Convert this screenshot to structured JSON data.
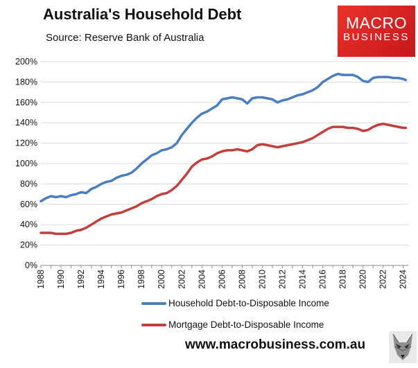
{
  "header": {
    "title": "Australia's Household Debt",
    "subtitle": "Source: Reserve Bank of Australia"
  },
  "logo": {
    "line1": "MACRO",
    "line2": "BUSINESS",
    "color": "#d9241f"
  },
  "footer": {
    "website": "www.macrobusiness.com.au",
    "icon": "wolf-icon"
  },
  "chart_data": {
    "type": "line",
    "title": "Australia's Household Debt",
    "xlabel": "",
    "ylabel": "",
    "xlim": [
      1988,
      2024.5
    ],
    "ylim": [
      0,
      200
    ],
    "y_tick_labels": [
      "0%",
      "20%",
      "40%",
      "60%",
      "80%",
      "100%",
      "120%",
      "140%",
      "160%",
      "180%",
      "200%"
    ],
    "x_tick_labels": [
      "1988",
      "1990",
      "1992",
      "1994",
      "1996",
      "1998",
      "2000",
      "2002",
      "2004",
      "2006",
      "2008",
      "2010",
      "2012",
      "2014",
      "2016",
      "2018",
      "2020",
      "2022",
      "2024"
    ],
    "grid": "horizontal",
    "legend_position": "bottom",
    "series": [
      {
        "name": "Household Debt-to-Disposable Income",
        "color": "#4a7ebf",
        "x": [
          1988,
          1988.5,
          1989,
          1989.5,
          1990,
          1990.5,
          1991,
          1991.5,
          1992,
          1992.5,
          1993,
          1993.5,
          1994,
          1994.5,
          1995,
          1995.5,
          1996,
          1996.5,
          1997,
          1997.5,
          1998,
          1998.5,
          1999,
          1999.5,
          2000,
          2000.5,
          2001,
          2001.5,
          2002,
          2002.5,
          2003,
          2003.5,
          2004,
          2004.5,
          2005,
          2005.5,
          2006,
          2006.5,
          2007,
          2007.5,
          2008,
          2008.5,
          2009,
          2009.5,
          2010,
          2010.5,
          2011,
          2011.5,
          2012,
          2012.5,
          2013,
          2013.5,
          2014,
          2014.5,
          2015,
          2015.5,
          2016,
          2016.5,
          2017,
          2017.5,
          2018,
          2018.5,
          2019,
          2019.5,
          2020,
          2020.5,
          2021,
          2021.5,
          2022,
          2022.5,
          2023,
          2023.5,
          2024,
          2024.25
        ],
        "y": [
          63,
          66,
          68,
          67,
          68,
          67,
          69,
          70,
          72,
          71,
          75,
          77,
          80,
          82,
          83,
          86,
          88,
          89,
          91,
          95,
          100,
          104,
          108,
          110,
          113,
          114,
          116,
          120,
          128,
          134,
          140,
          145,
          149,
          151,
          154,
          157,
          163,
          164,
          165,
          164,
          163,
          159,
          164,
          165,
          165,
          164,
          163,
          160,
          162,
          163,
          165,
          167,
          168,
          170,
          172,
          175,
          180,
          183,
          186,
          188,
          187,
          187,
          187,
          185,
          181,
          180,
          184,
          185,
          185,
          185,
          184,
          184,
          183,
          182
        ]
      },
      {
        "name": "Mortgage Debt-to-Disposable Income",
        "color": "#c0403d",
        "x": [
          1988,
          1988.5,
          1989,
          1989.5,
          1990,
          1990.5,
          1991,
          1991.5,
          1992,
          1992.5,
          1993,
          1993.5,
          1994,
          1994.5,
          1995,
          1995.5,
          1996,
          1996.5,
          1997,
          1997.5,
          1998,
          1998.5,
          1999,
          1999.5,
          2000,
          2000.5,
          2001,
          2001.5,
          2002,
          2002.5,
          2003,
          2003.5,
          2004,
          2004.5,
          2005,
          2005.5,
          2006,
          2006.5,
          2007,
          2007.5,
          2008,
          2008.5,
          2009,
          2009.5,
          2010,
          2010.5,
          2011,
          2011.5,
          2012,
          2012.5,
          2013,
          2013.5,
          2014,
          2014.5,
          2015,
          2015.5,
          2016,
          2016.5,
          2017,
          2017.5,
          2018,
          2018.5,
          2019,
          2019.5,
          2020,
          2020.5,
          2021,
          2021.5,
          2022,
          2022.5,
          2023,
          2023.5,
          2024,
          2024.25
        ],
        "y": [
          32,
          32,
          32,
          31,
          31,
          31,
          32,
          34,
          35,
          37,
          40,
          43,
          46,
          48,
          50,
          51,
          52,
          54,
          56,
          58,
          61,
          63,
          65,
          68,
          70,
          71,
          74,
          78,
          84,
          90,
          97,
          101,
          104,
          105,
          107,
          110,
          112,
          113,
          113,
          114,
          113,
          112,
          114,
          118,
          119,
          118,
          117,
          116,
          117,
          118,
          119,
          120,
          121,
          123,
          125,
          128,
          131,
          134,
          136,
          136,
          136,
          135,
          135,
          134,
          132,
          133,
          136,
          138,
          139,
          138,
          137,
          136,
          135,
          135
        ]
      }
    ]
  }
}
